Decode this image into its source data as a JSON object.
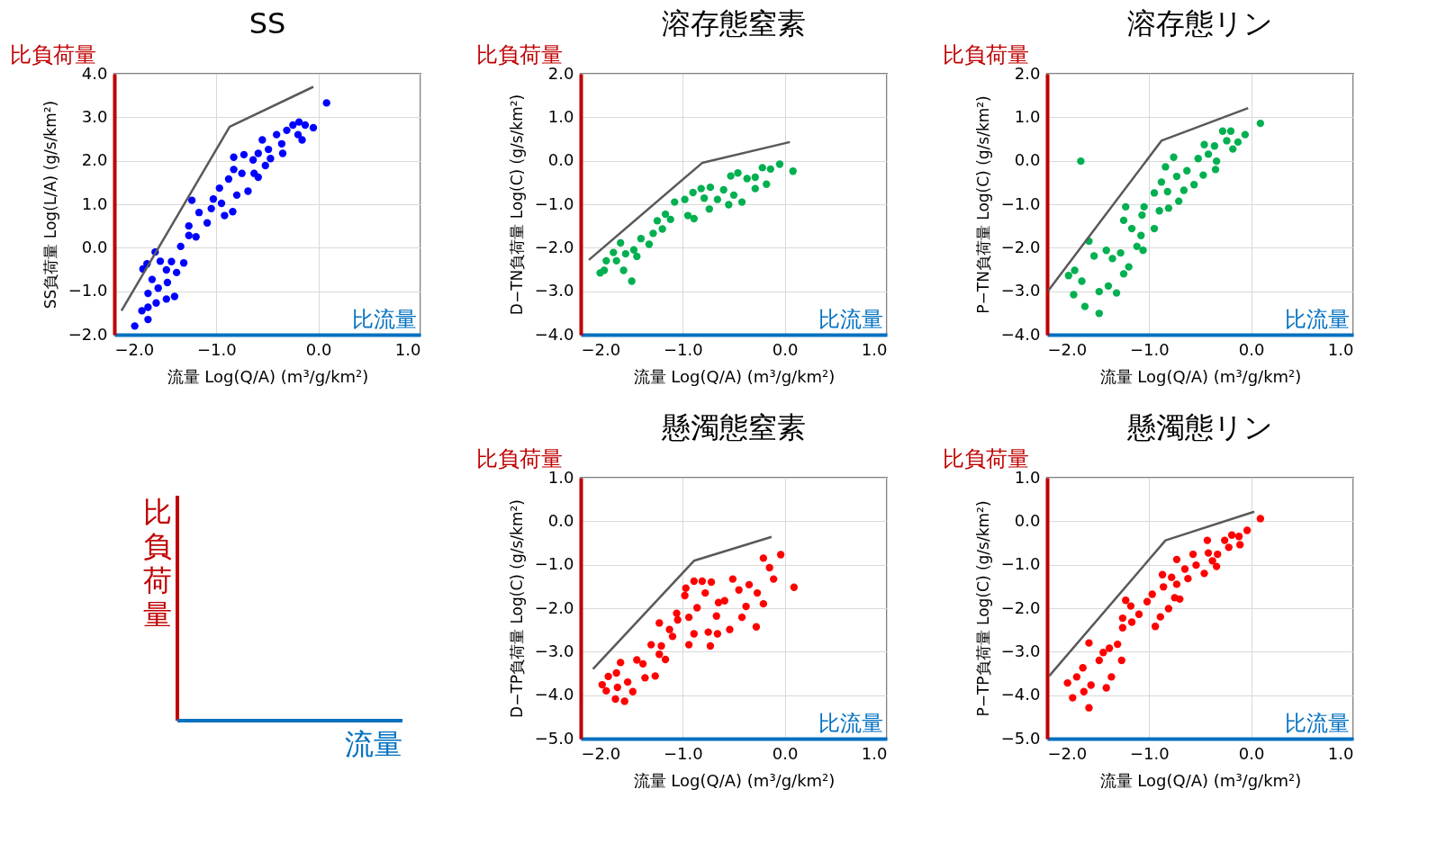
{
  "chart_data": [
    {
      "type": "scatter",
      "title": "SS",
      "xlabel": "流量 Log(Q/A) (m³/g/km²)",
      "ylabel": "SS負荷量 Log(L/A) (g/s/km²)",
      "annotations": [
        "比負荷量",
        "比流量"
      ],
      "xlim": [
        -2,
        1
      ],
      "xticks": [
        {
          "value": -2,
          "label": "−2.0"
        },
        {
          "value": -1,
          "label": "−1.0"
        },
        {
          "value": 0,
          "label": "0.0"
        },
        {
          "value": 1,
          "label": "1.0"
        }
      ],
      "ylim": [
        -2,
        4
      ],
      "yticks": [
        {
          "value": -2,
          "label": "−2.0"
        },
        {
          "value": -1,
          "label": "−1.0"
        },
        {
          "value": 0,
          "label": "0.0"
        },
        {
          "value": 1,
          "label": "1.0"
        },
        {
          "value": 2,
          "label": "2.0"
        },
        {
          "value": 3,
          "label": "3.0"
        },
        {
          "value": 4,
          "label": "4.0"
        }
      ],
      "grid": true,
      "marker": "circle",
      "series": [
        {
          "color": "#0000ff",
          "x": [
            -1.8,
            -1.67,
            -1.73,
            -1.67,
            -1.72,
            -1.68,
            -1.6,
            -1.55,
            -1.63,
            -1.67,
            -1.59,
            -1.49,
            -1.41,
            -1.48,
            -1.49,
            -1.44,
            -1.39,
            -1.35,
            -1.27,
            -1.2,
            -1.27,
            -1.24,
            -1.17,
            -1.09,
            -1.05,
            -1.03,
            -0.97,
            -0.92,
            -0.84,
            -0.8,
            -0.88,
            -0.83,
            -0.83,
            -0.73,
            -0.69,
            -0.63,
            -0.59,
            -0.64,
            -0.52,
            -0.47,
            -0.59,
            -0.55,
            -0.49,
            -0.41,
            -0.36,
            -0.35,
            -0.31,
            -0.25,
            -0.2,
            -0.16,
            -0.13,
            -0.05,
            -0.19,
            0.08,
            -0.75,
            -0.95,
            -1.32,
            -1.57
          ],
          "values": [
            -1.8,
            -1.65,
            -1.45,
            -1.37,
            -0.49,
            -0.37,
            -0.1,
            -0.31,
            -0.73,
            -1.05,
            -1.27,
            -1.18,
            -1.12,
            -0.8,
            -0.51,
            -0.32,
            -0.57,
            0.03,
            0.28,
            0.25,
            0.5,
            1.09,
            0.81,
            0.57,
            0.9,
            1.12,
            1.37,
            0.74,
            0.83,
            1.21,
            1.58,
            1.8,
            2.08,
            2.14,
            1.3,
            1.71,
            1.62,
            2.02,
            1.89,
            2.05,
            2.17,
            2.48,
            2.26,
            2.6,
            2.39,
            2.17,
            2.7,
            2.82,
            2.6,
            2.48,
            2.82,
            2.76,
            2.89,
            3.33,
            1.71,
            1.02,
            -0.35,
            -0.93
          ]
        },
        {
          "type": "line",
          "color": "#595959",
          "marker": "none",
          "x": [
            -1.93,
            -0.87,
            -0.05
          ],
          "values": [
            -1.45,
            2.78,
            3.7
          ]
        }
      ]
    },
    {
      "type": "scatter",
      "title": "溶存態窒素",
      "xlabel": "流量 Log(Q/A) (m³/g/km²)",
      "ylabel": "D−TN負荷量 Log(C) (g/s/km²)",
      "annotations": [
        "比負荷量",
        "比流量"
      ],
      "xlim": [
        -2,
        1
      ],
      "xticks": [
        {
          "value": -2,
          "label": "−2.0"
        },
        {
          "value": -1,
          "label": "−1.0"
        },
        {
          "value": 0,
          "label": "0.0"
        },
        {
          "value": 1,
          "label": "1.0"
        }
      ],
      "ylim": [
        -4,
        2
      ],
      "yticks": [
        {
          "value": -4,
          "label": "−4.0"
        },
        {
          "value": -3,
          "label": "−3.0"
        },
        {
          "value": -2,
          "label": "−2.0"
        },
        {
          "value": -1,
          "label": "−1.0"
        },
        {
          "value": 0,
          "label": "0.0"
        },
        {
          "value": 1,
          "label": "1.0"
        },
        {
          "value": 2,
          "label": "2.0"
        }
      ],
      "grid": true,
      "marker": "circle",
      "series": [
        {
          "color": "#00b050",
          "x": [
            -1.81,
            -1.77,
            -1.58,
            -1.5,
            -1.75,
            -1.65,
            -1.61,
            -1.56,
            -1.45,
            -1.41,
            -1.33,
            -1.29,
            -1.25,
            -1.2,
            -1.12,
            -1.08,
            -0.98,
            -0.95,
            -0.89,
            -0.9,
            -0.82,
            -0.73,
            -0.74,
            -0.66,
            -0.55,
            -0.53,
            -0.46,
            -0.5,
            -0.42,
            -0.37,
            -0.29,
            -0.29,
            -0.18,
            -0.22,
            -0.14,
            -0.05,
            0.08,
            -0.6,
            -0.79,
            -1.17,
            -1.68,
            -1.48
          ],
          "values": [
            -2.58,
            -2.52,
            -2.52,
            -2.77,
            -2.3,
            -2.3,
            -1.89,
            -2.14,
            -2.2,
            -1.79,
            -1.92,
            -1.67,
            -1.38,
            -1.57,
            -1.35,
            -0.95,
            -0.89,
            -1.26,
            -1.33,
            -0.73,
            -0.64,
            -0.61,
            -1.11,
            -0.89,
            -1.01,
            -0.35,
            -0.28,
            -0.79,
            -0.95,
            -0.41,
            -0.38,
            -0.64,
            -0.54,
            -0.16,
            -0.19,
            -0.08,
            -0.24,
            -0.67,
            -0.86,
            -1.23,
            -2.11,
            -2.05
          ]
        },
        {
          "type": "line",
          "color": "#595959",
          "marker": "none",
          "x": [
            -1.92,
            -0.81,
            0.05
          ],
          "values": [
            -2.28,
            -0.05,
            0.43
          ]
        }
      ]
    },
    {
      "type": "scatter",
      "title": "溶存態リン",
      "xlabel": "流量 Log(Q/A) (m³/g/km²)",
      "ylabel": "P−TN負荷量 Log(C) (g/s/km²)",
      "annotations": [
        "比負荷量",
        "比流量"
      ],
      "xlim": [
        -2,
        1
      ],
      "xticks": [
        {
          "value": -2,
          "label": "−2.0"
        },
        {
          "value": -1,
          "label": "−1.0"
        },
        {
          "value": 0,
          "label": "0.0"
        },
        {
          "value": 1,
          "label": "1.0"
        }
      ],
      "ylim": [
        -4,
        2
      ],
      "yticks": [
        {
          "value": -4,
          "label": "−4.0"
        },
        {
          "value": -3,
          "label": "−3.0"
        },
        {
          "value": -2,
          "label": "−2.0"
        },
        {
          "value": -1,
          "label": "−1.0"
        },
        {
          "value": 0,
          "label": "0.0"
        },
        {
          "value": 1,
          "label": "1.0"
        },
        {
          "value": 2,
          "label": "2.0"
        }
      ],
      "grid": true,
      "marker": "circle",
      "series": [
        {
          "color": "#00b050",
          "x": [
            -1.67,
            -1.49,
            -1.63,
            -1.74,
            -1.79,
            -1.73,
            -1.66,
            -1.59,
            -1.54,
            -1.49,
            -1.4,
            -1.32,
            -1.42,
            -1.36,
            -1.28,
            -1.2,
            -1.25,
            -1.12,
            -1.06,
            -1.25,
            -1.23,
            -1.17,
            -1.08,
            -1.07,
            -1.05,
            -0.95,
            -0.95,
            -0.9,
            -0.88,
            -0.82,
            -0.81,
            -0.76,
            -0.84,
            -0.73,
            -0.71,
            -0.66,
            -0.63,
            -0.56,
            -0.52,
            -0.47,
            -0.46,
            -0.42,
            -0.35,
            -0.34,
            -0.28,
            -0.24,
            -0.18,
            -0.2,
            -0.13,
            -0.06,
            0.09,
            -0.36
          ],
          "values": [
            -0.01,
            -3.51,
            -3.35,
            -3.08,
            -2.64,
            -2.52,
            -2.77,
            -1.85,
            -2.19,
            -3.01,
            -2.88,
            -3.04,
            -2.06,
            -2.25,
            -2.12,
            -2.44,
            -2.6,
            -1.97,
            -2.06,
            -1.37,
            -1.06,
            -1.56,
            -1.72,
            -1.25,
            -1.06,
            -1.56,
            -0.74,
            -1.15,
            -0.49,
            -0.71,
            -1.09,
            0.08,
            -0.14,
            -0.36,
            -0.93,
            -0.68,
            -0.23,
            -0.55,
            0.05,
            -0.33,
            0.37,
            0.15,
            -0.2,
            -0.01,
            0.68,
            0.46,
            0.27,
            0.68,
            0.43,
            0.6,
            0.86,
            0.34
          ]
        },
        {
          "type": "line",
          "color": "#595959",
          "marker": "none",
          "x": [
            -1.99,
            -0.88,
            -0.03
          ],
          "values": [
            -2.99,
            0.46,
            1.21
          ]
        }
      ]
    },
    {
      "type": "other",
      "annotations": [
        "比負荷量",
        "流量"
      ]
    },
    {
      "type": "scatter",
      "title": "懸濁態窒素",
      "xlabel": "流量 Log(Q/A) (m³/g/km²)",
      "ylabel": "D−TP負荷量 Log(C) (g/s/km²)",
      "annotations": [
        "比負荷量",
        "比流量"
      ],
      "xlim": [
        -2,
        1
      ],
      "xticks": [
        {
          "value": -2,
          "label": "−2.0"
        },
        {
          "value": -1,
          "label": "−1.0"
        },
        {
          "value": 0,
          "label": "0.0"
        },
        {
          "value": 1,
          "label": "1.0"
        }
      ],
      "ylim": [
        -5,
        1
      ],
      "yticks": [
        {
          "value": -5,
          "label": "−5.0"
        },
        {
          "value": -4,
          "label": "−4.0"
        },
        {
          "value": -3,
          "label": "−3.0"
        },
        {
          "value": -2,
          "label": "−2.0"
        },
        {
          "value": -1,
          "label": "−1.0"
        },
        {
          "value": 0,
          "label": "0.0"
        },
        {
          "value": 1,
          "label": "1.0"
        }
      ],
      "grid": true,
      "marker": "circle",
      "series": [
        {
          "color": "#ff0000",
          "x": [
            -1.79,
            -1.75,
            -1.66,
            -1.57,
            -1.49,
            -1.73,
            -1.65,
            -1.61,
            -1.64,
            -1.54,
            -1.45,
            -1.37,
            -1.27,
            -1.39,
            -1.31,
            -1.23,
            -1.17,
            -1.21,
            -1.23,
            -1.13,
            -1.1,
            -1.06,
            -0.98,
            -0.97,
            -0.94,
            -0.89,
            -0.81,
            -0.72,
            -0.94,
            -0.86,
            -0.78,
            -0.89,
            -0.75,
            -0.73,
            -0.66,
            -0.67,
            -0.59,
            -0.54,
            -0.51,
            -0.45,
            -0.42,
            -0.38,
            -0.35,
            -0.27,
            -0.21,
            -0.28,
            -0.21,
            -0.15,
            -0.11,
            -0.04,
            0.09,
            -0.65,
            -1.05
          ],
          "values": [
            -3.76,
            -3.9,
            -4.09,
            -4.14,
            -3.92,
            -3.57,
            -3.49,
            -3.25,
            -3.82,
            -3.7,
            -3.19,
            -3.6,
            -3.56,
            -3.28,
            -2.84,
            -3.06,
            -3.18,
            -2.87,
            -2.34,
            -2.49,
            -2.65,
            -2.12,
            -1.71,
            -1.54,
            -2.84,
            -1.38,
            -1.38,
            -1.4,
            -2.21,
            -1.99,
            -1.65,
            -2.59,
            -2.55,
            -2.87,
            -2.59,
            -2.18,
            -1.83,
            -2.49,
            -1.33,
            -1.58,
            -2.21,
            -1.96,
            -1.46,
            -1.65,
            -1.9,
            -2.43,
            -0.85,
            -1.07,
            -1.33,
            -0.77,
            -1.52,
            -1.87,
            -2.27
          ]
        },
        {
          "type": "line",
          "color": "#595959",
          "marker": "none",
          "x": [
            -1.88,
            -0.89,
            -0.13
          ],
          "values": [
            -3.4,
            -0.91,
            -0.36
          ]
        }
      ]
    },
    {
      "type": "scatter",
      "title": "懸濁態リン",
      "xlabel": "流量 Log(Q/A) (m³/g/km²)",
      "ylabel": "P−TP負荷量 Log(C) (g/s/km²)",
      "annotations": [
        "比負荷量",
        "比流量"
      ],
      "xlim": [
        -2,
        1
      ],
      "xticks": [
        {
          "value": -2,
          "label": "−2.0"
        },
        {
          "value": -1,
          "label": "−1.0"
        },
        {
          "value": 0,
          "label": "0.0"
        },
        {
          "value": 1,
          "label": "1.0"
        }
      ],
      "ylim": [
        -5,
        1
      ],
      "yticks": [
        {
          "value": -5,
          "label": "−5.0"
        },
        {
          "value": -4,
          "label": "−4.0"
        },
        {
          "value": -3,
          "label": "−3.0"
        },
        {
          "value": -2,
          "label": "−2.0"
        },
        {
          "value": -1,
          "label": "−1.0"
        },
        {
          "value": 0,
          "label": "0.0"
        },
        {
          "value": 1,
          "label": "1.0"
        }
      ],
      "grid": true,
      "marker": "circle",
      "series": [
        {
          "color": "#ff0000",
          "x": [
            -1.59,
            -1.75,
            -1.8,
            -1.64,
            -1.71,
            -1.65,
            -1.57,
            -1.59,
            -1.49,
            -1.42,
            -1.37,
            -1.45,
            -1.39,
            -1.31,
            -1.27,
            -1.26,
            -1.23,
            -1.18,
            -1.26,
            -1.17,
            -1.1,
            -1.02,
            -0.97,
            -0.94,
            -0.89,
            -0.81,
            -0.87,
            -0.86,
            -0.75,
            -0.73,
            -0.73,
            -0.7,
            -0.65,
            -0.62,
            -0.57,
            -0.54,
            -0.46,
            -0.43,
            -0.42,
            -0.38,
            -0.34,
            -0.33,
            -0.26,
            -0.22,
            -0.19,
            -0.11,
            -0.12,
            -0.04,
            0.09,
            -0.78
          ],
          "values": [
            -4.29,
            -4.06,
            -3.72,
            -3.92,
            -3.58,
            -3.37,
            -3.77,
            -2.8,
            -3.2,
            -3.83,
            -3.58,
            -3.02,
            -2.92,
            -2.83,
            -3.2,
            -2.45,
            -1.82,
            -1.95,
            -2.23,
            -2.32,
            -2.14,
            -1.85,
            -1.68,
            -2.42,
            -2.2,
            -2.01,
            -1.23,
            -1.51,
            -1.76,
            -0.88,
            -1.45,
            -1.79,
            -1.1,
            -1.32,
            -0.76,
            -1.01,
            -1.2,
            -0.44,
            -0.73,
            -0.91,
            -1.04,
            -0.76,
            -0.44,
            -0.6,
            -0.32,
            -0.54,
            -0.35,
            -0.21,
            0.06,
            -1.29
          ]
        },
        {
          "type": "line",
          "color": "#595959",
          "marker": "none",
          "x": [
            -1.98,
            -0.84,
            0.03
          ],
          "values": [
            -3.56,
            -0.44,
            0.22
          ]
        }
      ]
    }
  ]
}
